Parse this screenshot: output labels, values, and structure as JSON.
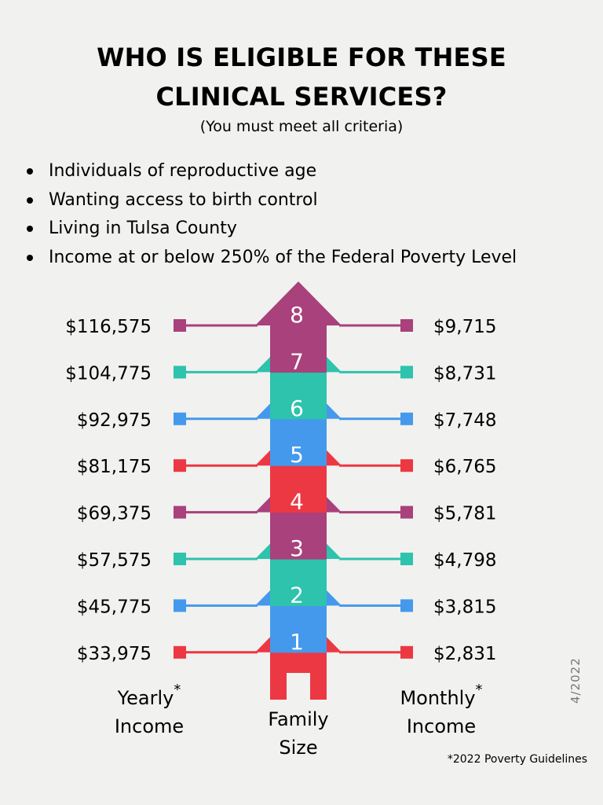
{
  "title_line1": "WHO IS ELIGIBLE FOR THESE",
  "title_line2": "CLINICAL SERVICES?",
  "subtitle": "(You must meet all criteria)",
  "criteria": [
    "Individuals of reproductive age",
    "Wanting access to birth control",
    "Living in Tulsa County",
    "Income at or below 250% of the Federal Poverty Level"
  ],
  "rows": [
    {
      "size": "8",
      "yearly": "$116,575",
      "monthly": "$9,715",
      "color": "#a8417c"
    },
    {
      "size": "7",
      "yearly": "$104,775",
      "monthly": "$8,731",
      "color": "#2dc3ad"
    },
    {
      "size": "6",
      "yearly": "$92,975",
      "monthly": "$7,748",
      "color": "#4499ec"
    },
    {
      "size": "5",
      "yearly": "$81,175",
      "monthly": "$6,765",
      "color": "#ec3843"
    },
    {
      "size": "4",
      "yearly": "$69,375",
      "monthly": "$5,781",
      "color": "#a8417c"
    },
    {
      "size": "3",
      "yearly": "$57,575",
      "monthly": "$4,798",
      "color": "#2dc3ad"
    },
    {
      "size": "2",
      "yearly": "$45,775",
      "monthly": "$3,815",
      "color": "#4499ec"
    },
    {
      "size": "1",
      "yearly": "$33,975",
      "monthly": "$2,831",
      "color": "#ec3843"
    }
  ],
  "captions": {
    "yearly_line1": "Yearly",
    "yearly_line2": "Income",
    "family_line1": "Family",
    "family_line2": "Size",
    "monthly_line1": "Monthly",
    "monthly_line2": "Income",
    "asterisk": "*"
  },
  "date_note": "4/2022",
  "footnote": "*2022 Poverty Guidelines"
}
